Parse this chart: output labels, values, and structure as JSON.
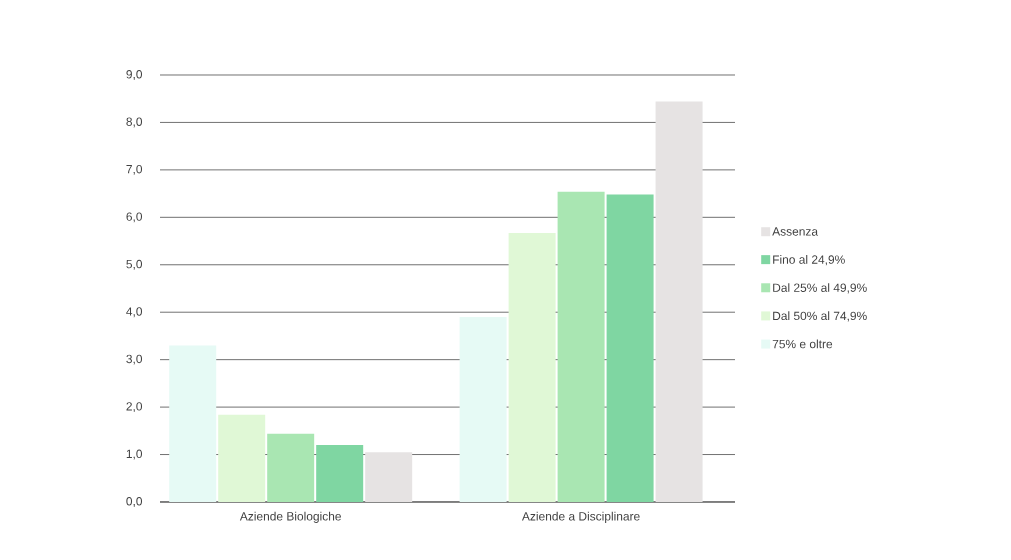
{
  "chart_data": {
    "type": "bar",
    "categories": [
      "Aziende Biologiche",
      "Aziende a Disciplinare"
    ],
    "series": [
      {
        "name": "75% e oltre",
        "color": "#e6faf5",
        "values": [
          3.3,
          3.9
        ]
      },
      {
        "name": "Dal 50% al 74,9%",
        "color": "#e0f8d6",
        "values": [
          1.84,
          5.67
        ]
      },
      {
        "name": "Dal 25% al 49,9%",
        "color": "#a9e6b2",
        "values": [
          1.44,
          6.54
        ]
      },
      {
        "name": "Fino al 24,9%",
        "color": "#7fd6a2",
        "values": [
          1.2,
          6.48
        ]
      },
      {
        "name": "Assenza",
        "color": "#e6e3e3",
        "values": [
          1.05,
          8.44
        ]
      }
    ],
    "ylim": [
      0,
      9
    ],
    "yticks": [
      {
        "value": 0,
        "label": "0,0"
      },
      {
        "value": 1,
        "label": "1,0"
      },
      {
        "value": 2,
        "label": "2,0"
      },
      {
        "value": 3,
        "label": "3,0"
      },
      {
        "value": 4,
        "label": "4,0"
      },
      {
        "value": 5,
        "label": "5,0"
      },
      {
        "value": 6,
        "label": "6,0"
      },
      {
        "value": 7,
        "label": "7,0"
      },
      {
        "value": 8,
        "label": "8,0"
      },
      {
        "value": 9,
        "label": "9,0"
      }
    ],
    "grid": "y",
    "legend": "right"
  }
}
